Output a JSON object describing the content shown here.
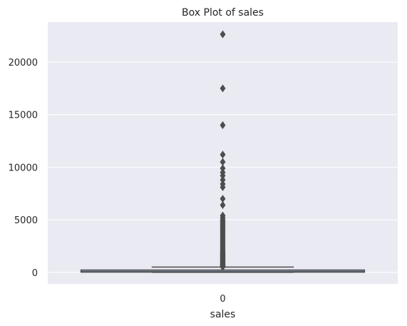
{
  "chart_data": {
    "type": "box",
    "title": "Box Plot of sales",
    "xlabel": "sales",
    "ylabel": "",
    "categories": [
      "0"
    ],
    "ylim": [
      -1100,
      23800
    ],
    "yticks": [
      0,
      5000,
      10000,
      15000,
      20000
    ],
    "grid": true,
    "legend": "none",
    "colors": {
      "plot_background": "#eaeaf2",
      "grid": "#ffffff",
      "box_face": "#8497ae",
      "box_edge": "#4d4d4d",
      "outlier": "#4d4d4d",
      "text": "#262626"
    },
    "box": {
      "q1": 20,
      "median": 55,
      "q3": 210,
      "whisker_low": 0,
      "whisker_high": 500
    },
    "outliers": [
      22640,
      17500,
      14000,
      11200,
      10500,
      9900,
      9500,
      9200,
      8800,
      8400,
      8100,
      7000,
      6400,
      5400,
      5200,
      5000,
      4850,
      4700,
      4550,
      4400,
      4250,
      4100,
      3950,
      3800,
      3650,
      3500,
      3350,
      3200,
      3050,
      2900,
      2750,
      2600,
      2450,
      2300,
      2150,
      2000,
      1900,
      1800,
      1700,
      1600,
      1500,
      1400,
      1300,
      1200,
      1100,
      1000,
      920,
      840,
      760,
      700,
      640,
      580,
      540,
      520
    ]
  }
}
